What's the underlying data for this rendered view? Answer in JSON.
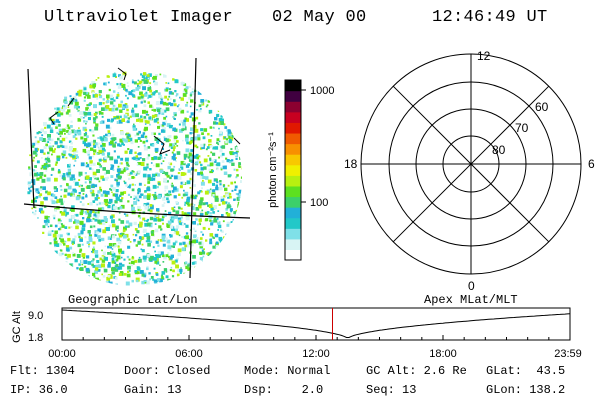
{
  "header": {
    "instrument": "Ultraviolet Imager",
    "date": "02 May 00",
    "time": "12:46:49 UT"
  },
  "colorbar": {
    "unit_label": "photon cm⁻²s⁻¹",
    "ticks": [
      "1000",
      "100"
    ],
    "colors": [
      "#ffffff",
      "#d8f4f4",
      "#7fe0e8",
      "#22c8c8",
      "#22b0d8",
      "#3cd06a",
      "#5de020",
      "#b8f010",
      "#f0f000",
      "#f8c800",
      "#f89000",
      "#f05a00",
      "#e01800",
      "#c80020",
      "#8c0030",
      "#400040",
      "#000000"
    ]
  },
  "polar": {
    "hour_labels": {
      "top": "12",
      "left": "18",
      "right": "6",
      "bottom": "0"
    },
    "lat_labels": [
      "60",
      "70",
      "80"
    ]
  },
  "timeline": {
    "left_label": "Geographic Lat/Lon",
    "right_label": "Apex MLat/MLT",
    "axis_label": "GC Alt",
    "y_ticks": [
      "9.0",
      "1.8"
    ],
    "x_ticks": [
      "00:00",
      "06:00",
      "12:00",
      "18:00",
      "23:59"
    ],
    "marker_time_hours": 12.78,
    "marker_color": "#cc0000"
  },
  "info": {
    "row1": {
      "flt": "Flt: 1304",
      "door": "Door: Closed",
      "mode": "Mode: Normal",
      "gcalt": "GC Alt: 2.6 Re",
      "glat": "GLat:  43.5"
    },
    "row2": {
      "ip": "IP: 36.0",
      "gain": "Gain: 13",
      "dsp": "Dsp:    2.0",
      "seq": "Seq: 13",
      "glon": "GLon: 138.2"
    }
  }
}
